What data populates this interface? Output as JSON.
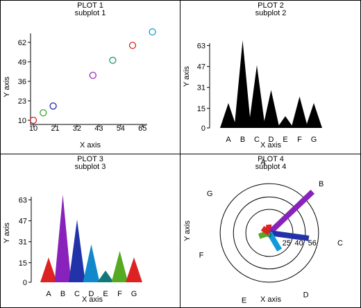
{
  "figure": {
    "panels": [
      {
        "plot_label": "PLOT 1",
        "subtitle": "subplot 1"
      },
      {
        "plot_label": "PLOT 2",
        "subtitle": "subplot 2"
      },
      {
        "plot_label": "PLOT 3",
        "subtitle": "subplot 3"
      },
      {
        "plot_label": "PLOT 4",
        "subtitle": "subplot 4"
      }
    ]
  },
  "chart_data": [
    {
      "type": "scatter",
      "title": "PLOT 1",
      "subtitle": "subplot 1",
      "xlabel": "X axis",
      "ylabel": "Y axis",
      "xlim": [
        10,
        67
      ],
      "ylim": [
        10,
        68
      ],
      "xticks": [
        10,
        21,
        32,
        43,
        54,
        65
      ],
      "yticks": [
        10,
        23,
        36,
        49,
        62
      ],
      "points": [
        {
          "x": 10,
          "y": 10,
          "color": "#cc2222"
        },
        {
          "x": 15,
          "y": 15,
          "color": "#33aa22"
        },
        {
          "x": 20,
          "y": 19.5,
          "color": "#2222aa"
        },
        {
          "x": 40,
          "y": 40,
          "color": "#9922bb"
        },
        {
          "x": 50,
          "y": 50,
          "color": "#229966"
        },
        {
          "x": 60,
          "y": 60,
          "color": "#dd2222"
        },
        {
          "x": 70,
          "y": 69,
          "color": "#1199cc"
        }
      ]
    },
    {
      "type": "area",
      "title": "PLOT 2",
      "subtitle": "subplot 2",
      "xlabel": "X axis",
      "ylabel": "Y axis",
      "ylim": [
        0,
        67
      ],
      "yticks": [
        0,
        15,
        31,
        47,
        63
      ],
      "categories": [
        "A",
        "B",
        "C",
        "D",
        "E",
        "F",
        "G"
      ],
      "values": [
        19,
        67,
        48,
        29,
        9,
        24,
        19
      ],
      "color": "#000000"
    },
    {
      "type": "area",
      "title": "PLOT 3",
      "subtitle": "subplot 3",
      "xlabel": "X axis",
      "ylabel": "Y axis",
      "ylim": [
        0,
        67
      ],
      "yticks": [
        0,
        15,
        31,
        47,
        63
      ],
      "categories": [
        "A",
        "B",
        "C",
        "D",
        "E",
        "F",
        "G"
      ],
      "values": [
        19,
        67,
        48,
        29,
        9,
        24,
        19
      ],
      "colors": [
        "#dd2222",
        "#8822bb",
        "#2233aa",
        "#1188cc",
        "#117777",
        "#55aa22",
        "#dd2222"
      ]
    },
    {
      "type": "polar-bar",
      "title": "PLOT 4",
      "subtitle": "subplot 4",
      "xlabel": "X axis",
      "ylabel": "Y axis",
      "rlim": [
        0,
        72
      ],
      "rticks": [
        25,
        40,
        56
      ],
      "categories": [
        "A",
        "B",
        "C",
        "D",
        "E",
        "F",
        "G"
      ],
      "values": [
        10,
        72,
        48,
        24,
        5,
        13,
        10
      ],
      "colors": [
        "#dd2222",
        "#8822bb",
        "#2233aa",
        "#1199dd",
        "#117777",
        "#55aa22",
        "#dd2222"
      ]
    }
  ]
}
